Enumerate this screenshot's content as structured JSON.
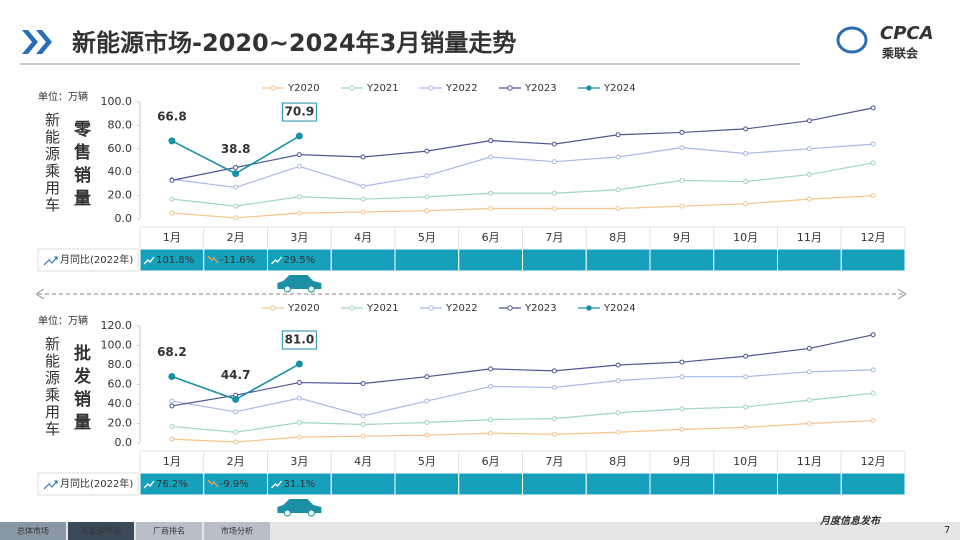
{
  "header": {
    "title": "新能源市场-2020~2024年3月销量走势",
    "logo": "CPCA",
    "logo_sub": "乘联会"
  },
  "chart_data": [
    {
      "type": "line",
      "side_label": "新能源乘用车",
      "label": "零售销量",
      "unit": "单位：万辆",
      "categories": [
        "1月",
        "2月",
        "3月",
        "4月",
        "5月",
        "6月",
        "7月",
        "8月",
        "9月",
        "10月",
        "11月",
        "12月"
      ],
      "ylim": [
        0,
        100
      ],
      "yticks": [
        {
          "value": 0,
          "label": "0.0"
        },
        {
          "value": 20,
          "label": "20.0"
        },
        {
          "value": 40,
          "label": "40.0"
        },
        {
          "value": 60,
          "label": "60.0"
        },
        {
          "value": 80,
          "label": "80.0"
        },
        {
          "value": 100,
          "label": "100.0"
        }
      ],
      "grid": false,
      "series": [
        {
          "name": "Y2020",
          "color": "#f7c48d",
          "values": [
            5,
            1,
            5,
            6,
            7,
            9,
            9,
            9,
            11,
            13,
            17,
            20
          ]
        },
        {
          "name": "Y2021",
          "color": "#9fd8bf",
          "values": [
            17,
            11,
            19,
            17,
            19,
            22,
            22,
            25,
            33,
            32,
            38,
            48
          ]
        },
        {
          "name": "Y2022",
          "color": "#aab8e8",
          "values": [
            34,
            27,
            45,
            28,
            37,
            53,
            49,
            53,
            61,
            56,
            60,
            64
          ]
        },
        {
          "name": "Y2023",
          "color": "#4f5597",
          "values": [
            33,
            44,
            55,
            53,
            58,
            67,
            64,
            72,
            74,
            77,
            84,
            95
          ]
        },
        {
          "name": "Y2024",
          "color": "#1b8fa6",
          "values": [
            66.8,
            38.8,
            70.9,
            null,
            null,
            null,
            null,
            null,
            null,
            null,
            null,
            null
          ]
        }
      ],
      "yoy": {
        "label": "月同比(2022年)",
        "values": [
          101.8,
          -11.6,
          29.5
        ],
        "value_labels": [
          "101.8%",
          "-11.6%",
          "29.5%"
        ]
      }
    },
    {
      "type": "line",
      "side_label": "新能源乘用车",
      "label": "批发销量",
      "unit": "单位：万辆",
      "categories": [
        "1月",
        "2月",
        "3月",
        "4月",
        "5月",
        "6月",
        "7月",
        "8月",
        "9月",
        "10月",
        "11月",
        "12月"
      ],
      "ylim": [
        0,
        120
      ],
      "yticks": [
        {
          "value": 0,
          "label": "0.0"
        },
        {
          "value": 20,
          "label": "20.0"
        },
        {
          "value": 40,
          "label": "40.0"
        },
        {
          "value": 60,
          "label": "60.0"
        },
        {
          "value": 80,
          "label": "80.0"
        },
        {
          "value": 100,
          "label": "100.0"
        },
        {
          "value": 120,
          "label": "120.0"
        }
      ],
      "grid": false,
      "series": [
        {
          "name": "Y2020",
          "color": "#f7c48d",
          "values": [
            4,
            1,
            6,
            7,
            8,
            10,
            9,
            11,
            14,
            16,
            20,
            23
          ]
        },
        {
          "name": "Y2021",
          "color": "#9fd8bf",
          "values": [
            17,
            11,
            21,
            19,
            21,
            24,
            25,
            31,
            35,
            37,
            44,
            51
          ]
        },
        {
          "name": "Y2022",
          "color": "#aab8e8",
          "values": [
            43,
            32,
            46,
            28,
            43,
            58,
            57,
            64,
            68,
            68,
            73,
            75
          ]
        },
        {
          "name": "Y2023",
          "color": "#4f5597",
          "values": [
            38,
            49,
            62,
            61,
            68,
            76,
            74,
            80,
            83,
            89,
            97,
            111
          ]
        },
        {
          "name": "Y2024",
          "color": "#1b8fa6",
          "values": [
            68.2,
            44.7,
            81.0,
            null,
            null,
            null,
            null,
            null,
            null,
            null,
            null,
            null
          ],
          "value_labels": [
            "68.2",
            "44.7",
            "81.0",
            null,
            null,
            null,
            null,
            null,
            null,
            null,
            null,
            null
          ]
        }
      ],
      "yoy": {
        "label": "月同比(2022年)",
        "values": [
          76.2,
          -9.9,
          31.1
        ],
        "value_labels": [
          "76.2%",
          "-9.9%",
          "31.1%"
        ]
      }
    }
  ],
  "footer": {
    "tabs": [
      "总体市场",
      "新能源市场",
      "厂商排名",
      "市场分析"
    ],
    "note": "月度信息发布",
    "page": "7"
  }
}
